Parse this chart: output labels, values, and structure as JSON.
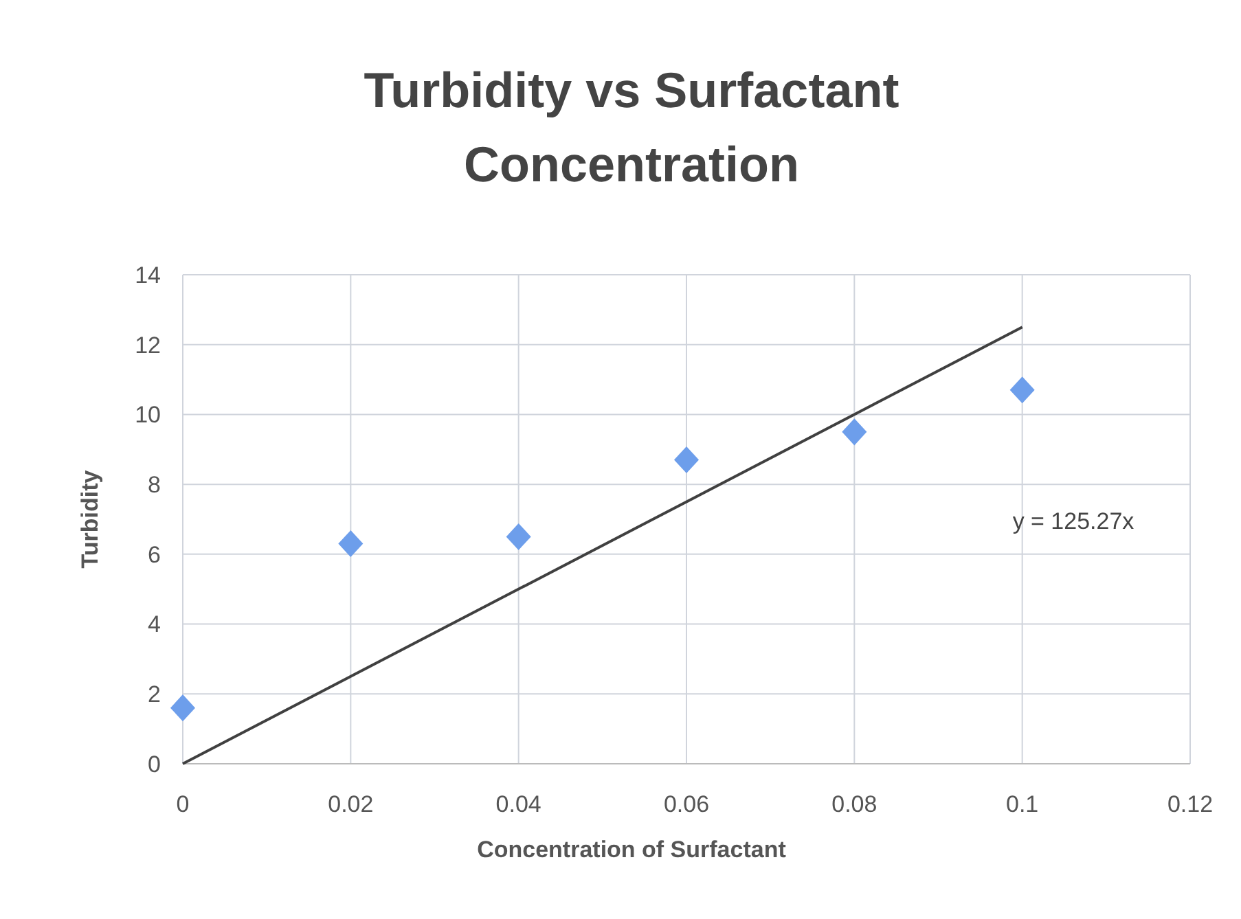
{
  "chart_data": {
    "type": "scatter",
    "title": "Turbidity vs Surfactant Concentration",
    "xlabel": "Concentration of Surfactant",
    "ylabel": "Turbidity",
    "x": [
      0,
      0.02,
      0.04,
      0.06,
      0.08,
      0.1
    ],
    "series": [
      {
        "color": "#6d9eeb",
        "values": [
          1.6,
          6.3,
          6.5,
          8.7,
          9.5,
          10.7
        ],
        "marker": "diamond"
      },
      {
        "type": "line",
        "color": "#404040",
        "x": [
          0,
          0.1
        ],
        "values": [
          0,
          12.5
        ],
        "marker": "none"
      }
    ],
    "xlim": [
      0,
      0.12
    ],
    "xticks": [
      0,
      0.02,
      0.04,
      0.06,
      0.08,
      0.1,
      0.12
    ],
    "ylim": [
      0,
      14
    ],
    "yticks": [
      0,
      2,
      4,
      6,
      8,
      10,
      12,
      14
    ],
    "grid": true,
    "annotations": [
      "y = 125.27x"
    ]
  }
}
